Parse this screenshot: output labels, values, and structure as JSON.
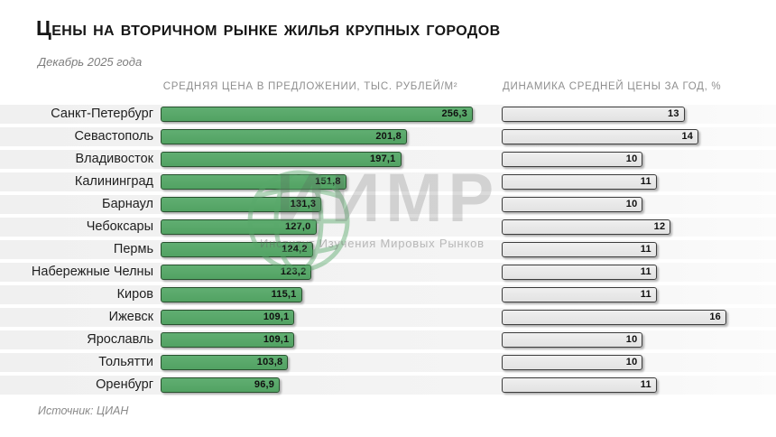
{
  "page": {
    "title": "Цены на вторичном рынке жилья крупных городов",
    "subtitle": "Декабрь 2025 года",
    "source": "Источник: ЦИАН"
  },
  "columns": {
    "price_header": "СРЕДНЯЯ ЦЕНА В ПРЕДЛОЖЕНИИ, ТЫС. РУБЛЕЙ/М²",
    "dynamics_header": "ДИНАМИКА СРЕДНЕЙ ЦЕНЫ ЗА ГОД, %"
  },
  "watermark": {
    "brand": "ИИМР",
    "subtitle": "Институт Изучения Мировых Рынков",
    "icon": "globe-icon"
  },
  "colors": {
    "bar_green": "#58a86a",
    "bar_green_border": "#29512f",
    "bar_gray": "#e8e8e8",
    "bar_gray_border": "#3c3c3c",
    "row_stripe": "#f1f1f1",
    "title_text": "#161616",
    "muted_text": "#8f8f8f"
  },
  "chart_data": {
    "type": "bar",
    "orientation": "horizontal",
    "title": "Цены на вторичном рынке жилья крупных городов",
    "subtitle": "Декабрь 2025 года",
    "source": "Источник: ЦИАН",
    "legend_position": "column-headers",
    "grid": false,
    "categories": [
      "Санкт-Петербург",
      "Севастополь",
      "Владивосток",
      "Калининград",
      "Барнаул",
      "Чебоксары",
      "Пермь",
      "Набережные Челны",
      "Киров",
      "Ижевск",
      "Ярославль",
      "Тольятти",
      "Оренбург"
    ],
    "series": [
      {
        "name": "Средняя цена в предложении, тыс. рублей/м²",
        "values": [
          256.3,
          201.8,
          197.1,
          151.8,
          131.3,
          127.0,
          124.2,
          123.2,
          115.1,
          109.1,
          109.1,
          103.8,
          96.9
        ],
        "labels": [
          "256,3",
          "201,8",
          "197,1",
          "151,8",
          "131,3",
          "127,0",
          "124,2",
          "123,2",
          "115,1",
          "109,1",
          "109,1",
          "103,8",
          "96,9"
        ],
        "xlim": [
          0,
          256.3
        ],
        "color": "#58a86a"
      },
      {
        "name": "Динамика средней цены за год, %",
        "values": [
          13,
          14,
          10,
          11,
          10,
          12,
          11,
          11,
          11,
          16,
          10,
          10,
          11
        ],
        "labels": [
          "13",
          "14",
          "10",
          "11",
          "10",
          "12",
          "11",
          "11",
          "11",
          "16",
          "10",
          "10",
          "11"
        ],
        "xlim": [
          0,
          16
        ],
        "color": "#e8e8e8"
      }
    ]
  }
}
